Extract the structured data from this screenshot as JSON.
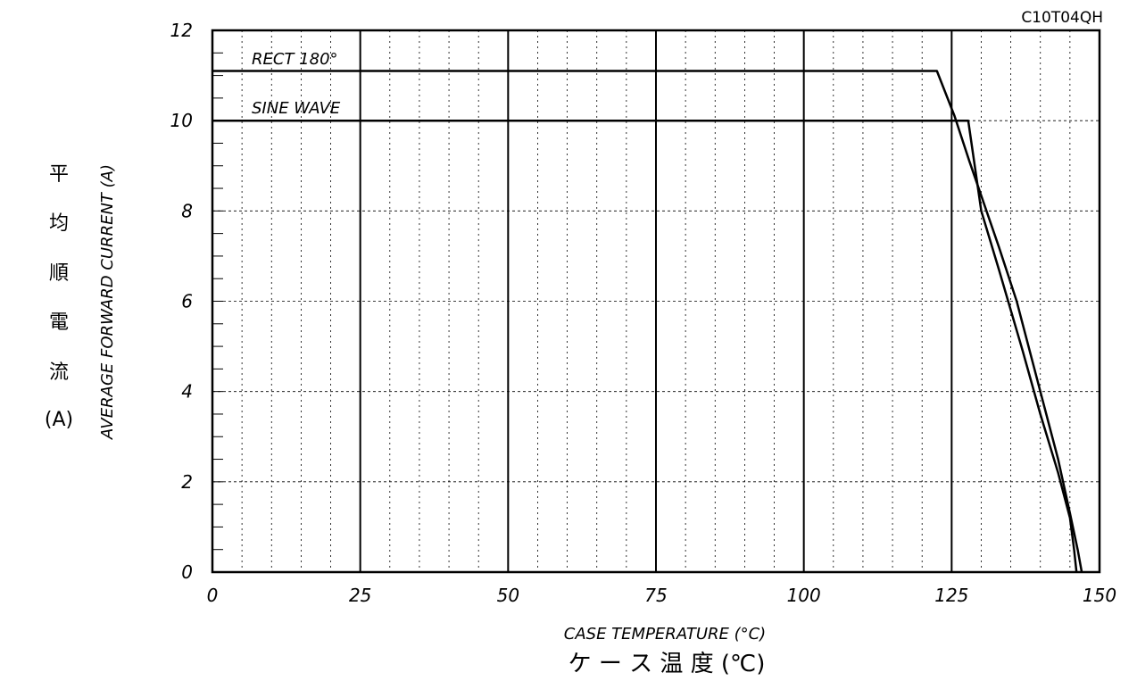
{
  "chart_data": {
    "type": "line",
    "code": "C10T04QH",
    "xlabel": "CASE TEMPERATURE (°C)",
    "xlabel_jp": "ケ ー ス 温 度 (℃)",
    "ylabel": "AVERAGE FORWARD CURRENT (A)",
    "ylabel_jp": [
      "平",
      "均",
      "順",
      "電",
      "流",
      "(A)"
    ],
    "xlim": [
      0,
      150
    ],
    "ylim": [
      0,
      12
    ],
    "x_ticks": [
      "0",
      "25",
      "50",
      "75",
      "100",
      "125",
      "150"
    ],
    "y_ticks": [
      "0",
      "2",
      "4",
      "6",
      "8",
      "10",
      "12"
    ],
    "grid": true,
    "series": [
      {
        "name": "RECT 180°",
        "x": [
          0,
          122.5,
          125.5,
          128,
          133,
          136,
          140,
          143,
          145,
          146.3,
          147
        ],
        "y": [
          11.1,
          11.1,
          10.1,
          9.1,
          7.2,
          6.0,
          4.0,
          2.5,
          1.3,
          0.5,
          0
        ]
      },
      {
        "name": "SINE WAVE",
        "x": [
          0,
          127.8,
          130,
          133,
          137,
          140,
          143,
          145,
          145.7,
          146.1
        ],
        "y": [
          10.0,
          10.0,
          8.0,
          6.7,
          4.9,
          3.5,
          2.2,
          1.2,
          0.5,
          0
        ]
      }
    ]
  }
}
